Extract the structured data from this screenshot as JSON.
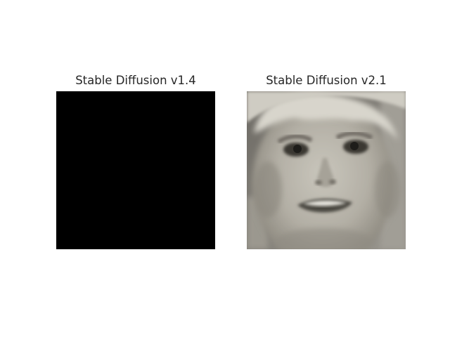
{
  "panels": [
    {
      "title": "Stable Diffusion v1.4",
      "content": "black image"
    },
    {
      "title": "Stable Diffusion v2.1",
      "content": "grayscale photo of a child's face"
    }
  ]
}
